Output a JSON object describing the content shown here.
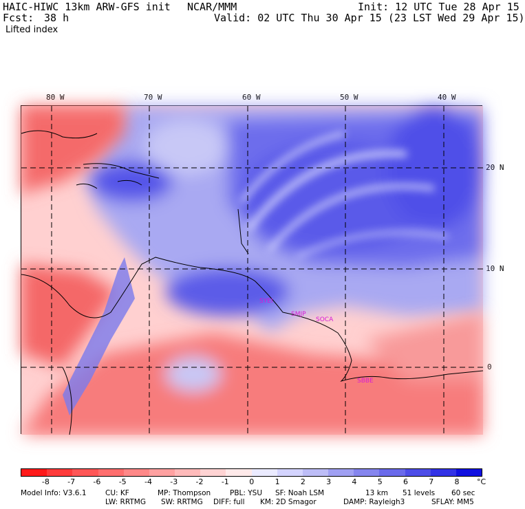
{
  "header": {
    "model": "HAIC-HIWC 13km ARW-GFS init",
    "org": "NCAR/MMM",
    "init": "Init: 12 UTC Tue 28 Apr 15",
    "fcst_label": "Fcst:",
    "fcst_value": "38 h",
    "valid": "Valid: 02 UTC Thu 30 Apr 15 (23 LST Wed 29 Apr 15)",
    "field": "Lifted index"
  },
  "map": {
    "lon_labels": [
      "80 W",
      "70 W",
      "60 W",
      "50 W",
      "40 W"
    ],
    "lat_labels": [
      "20 N",
      "10 N",
      "0"
    ],
    "stations": [
      "SYEI",
      "SMJP",
      "SOCA",
      "SBBE"
    ],
    "colors": {
      "station": "#d61ad6",
      "grid": "#000000"
    }
  },
  "colorbar": {
    "labels": [
      "-8",
      "-7",
      "-6",
      "-5",
      "-4",
      "-3",
      "-2",
      "-1",
      "0",
      "1",
      "2",
      "3",
      "4",
      "5",
      "6",
      "7",
      "8"
    ],
    "unit": "°C",
    "colors": [
      "#ff1a1a",
      "#ff3b3b",
      "#ff5656",
      "#ff6e6e",
      "#ff8888",
      "#ffa1a1",
      "#ffbaba",
      "#ffd3d3",
      "#ffeaea",
      "#ebebff",
      "#d4d4ff",
      "#bdbdf7",
      "#a0a0f3",
      "#8585ee",
      "#6a6aeb",
      "#4d4de8",
      "#3232e6",
      "#1010e0"
    ]
  },
  "footer": {
    "line1": [
      "Model Info: V3.6.1",
      "CU: KF",
      "MP: Thompson",
      "PBL: YSU",
      "SF: Noah LSM",
      "13 km",
      "51 levels",
      "60 sec"
    ],
    "line2": [
      "LW: RRTMG",
      "SW: RRTMG",
      "DIFF: full",
      "KM: 2D Smagor",
      "DAMP: Rayleigh3",
      "SFLAY: MM5"
    ]
  }
}
